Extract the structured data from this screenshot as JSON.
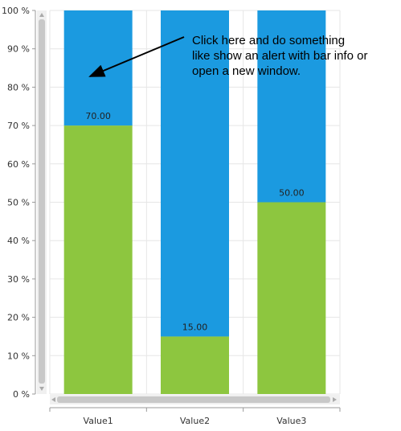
{
  "chart_data": {
    "type": "bar",
    "stacked": "percent",
    "categories": [
      "Value1",
      "Value2",
      "Value3"
    ],
    "series": [
      {
        "values": [
          70,
          15,
          50
        ],
        "color": "#8DC63F",
        "data_labels": [
          "70.00",
          "15.00",
          "50.00"
        ]
      },
      {
        "values": [
          30,
          85,
          50
        ],
        "color": "#1B9AE0"
      }
    ],
    "ylim": [
      0,
      100
    ],
    "yticks": [
      0,
      10,
      20,
      30,
      40,
      50,
      60,
      70,
      80,
      90,
      100
    ],
    "ytick_labels": [
      "0 %",
      "10 %",
      "20 %",
      "30 %",
      "40 %",
      "50 %",
      "60 %",
      "70 %",
      "80 %",
      "90 %",
      "100 %"
    ],
    "grid": true,
    "annotation": {
      "lines": [
        "Click here and do something",
        "like show an alert with bar info or",
        "open a new window."
      ],
      "arrow_target_category": "Value1"
    }
  },
  "scrollbars": {
    "vertical": "vertical-scrollbar",
    "horizontal": "horizontal-scrollbar"
  }
}
